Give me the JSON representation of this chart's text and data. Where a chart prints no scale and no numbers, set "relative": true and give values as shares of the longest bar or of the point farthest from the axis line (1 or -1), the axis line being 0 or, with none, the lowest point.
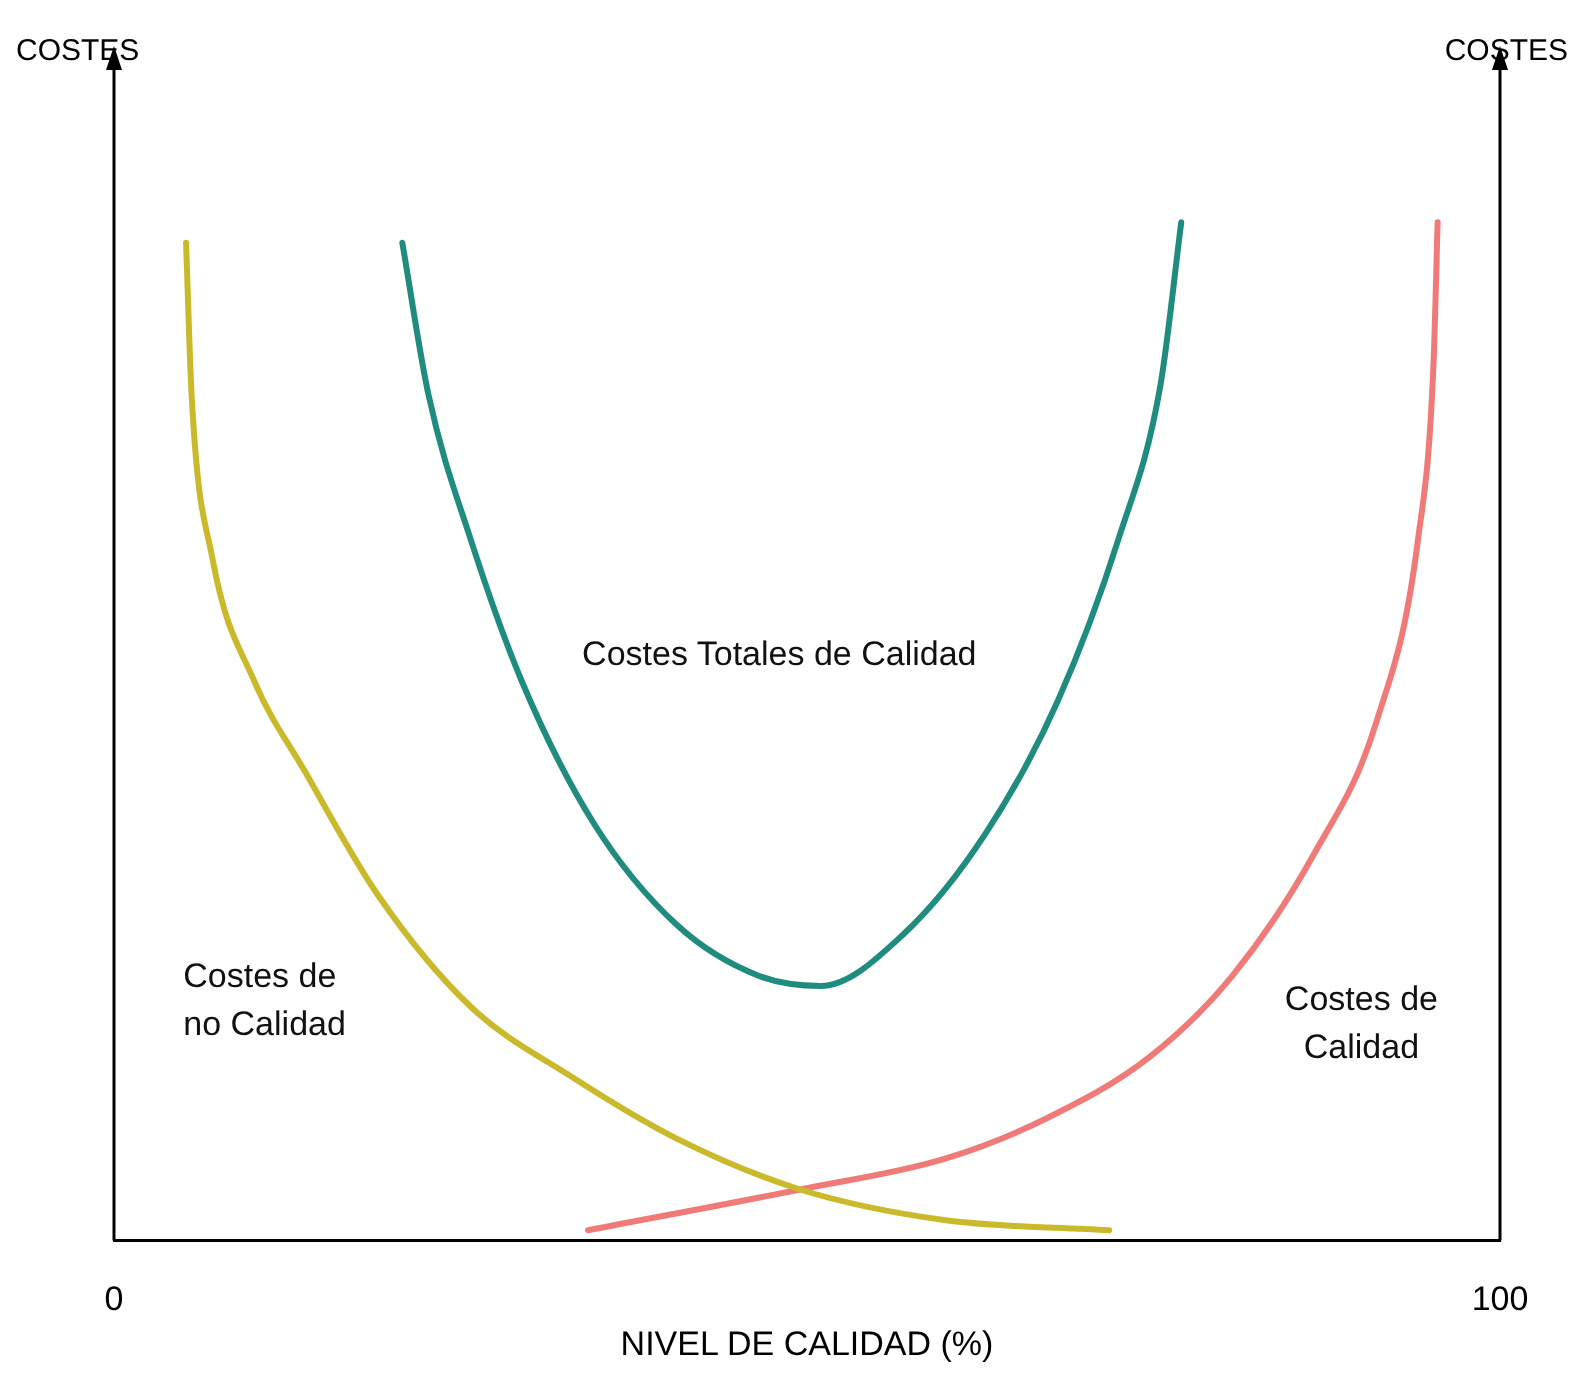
{
  "chart_data": {
    "type": "line",
    "xlabel": "NIVEL DE CALIDAD (%)",
    "annotations": [
      "COSTES",
      "COSTES"
    ],
    "relative": true,
    "xlim": [
      0,
      100
    ],
    "xticks": [
      0,
      100
    ],
    "marker": "none",
    "line_style": "solid",
    "legend": false,
    "series": [
      {
        "name": "Costes de no Calidad",
        "color": "#c9b92b",
        "x": [
          5.2,
          5.6,
          7.1,
          10.1,
          13.8,
          19.0,
          25.7,
          33.1,
          40.6,
          49.5,
          59.9,
          71.8
        ],
        "values": [
          0.98,
          0.83,
          0.67,
          0.55,
          0.46,
          0.34,
          0.23,
          0.16,
          0.1,
          0.05,
          0.02,
          0.01
        ]
      },
      {
        "name": "Costes Totales de Calidad",
        "color": "#1f8c7f",
        "x": [
          20.8,
          22.7,
          25.7,
          29.4,
          34.6,
          40.6,
          46.5,
          51.0,
          56.9,
          62.9,
          68.1,
          72.5,
          75.5,
          77.0
        ],
        "values": [
          0.98,
          0.83,
          0.69,
          0.55,
          0.41,
          0.31,
          0.26,
          0.25,
          0.3,
          0.4,
          0.53,
          0.69,
          0.84,
          1.0
        ]
      },
      {
        "name": "Costes de Calidad",
        "color": "#f07a78",
        "x": [
          34.2,
          49.5,
          59.9,
          67.3,
          74.7,
          80.7,
          86.6,
          91.1,
          94.1,
          95.2,
          95.5
        ],
        "values": [
          0.01,
          0.05,
          0.08,
          0.12,
          0.18,
          0.26,
          0.38,
          0.51,
          0.69,
          0.86,
          1.0
        ]
      }
    ]
  }
}
